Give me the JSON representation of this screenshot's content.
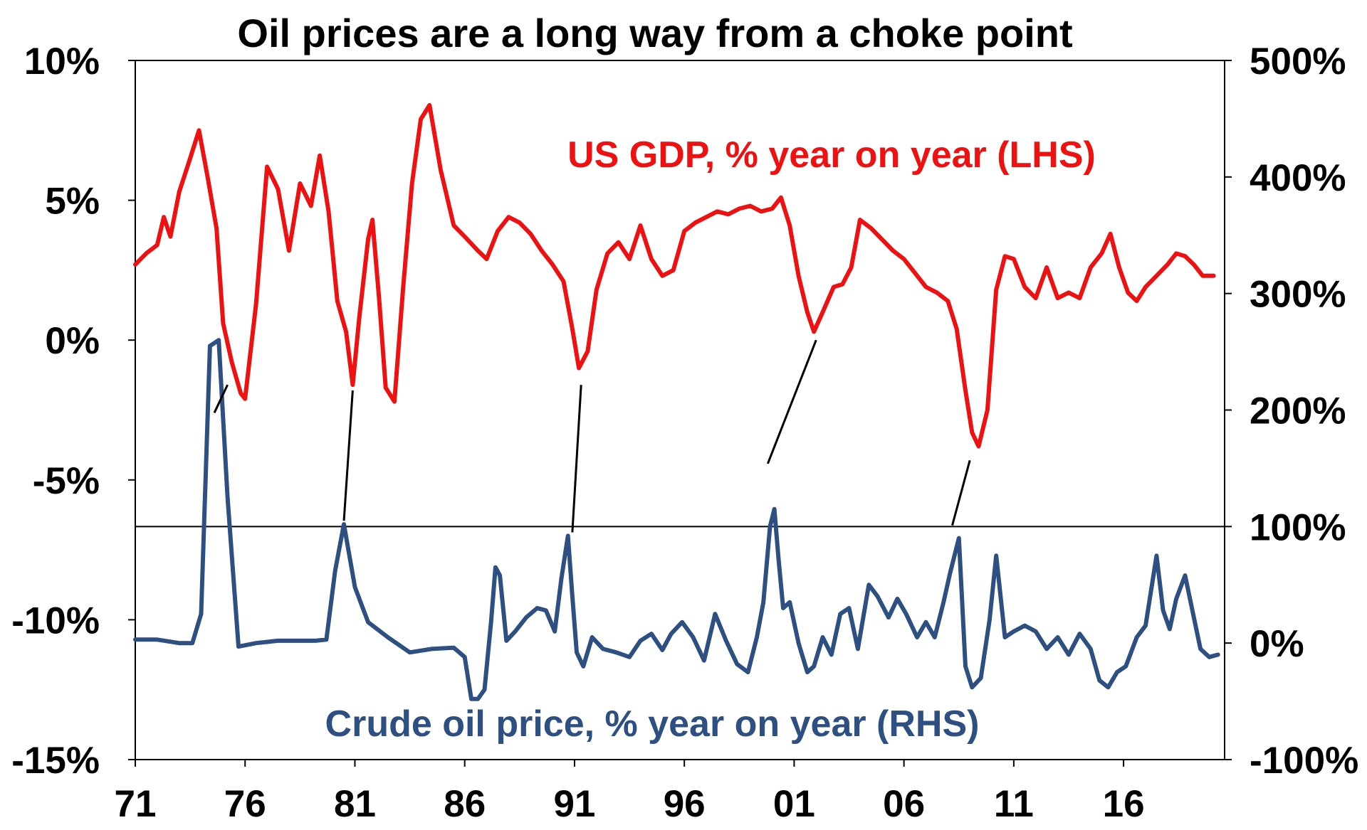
{
  "chart_data": {
    "type": "line",
    "title": "Oil prices are a long way from a choke point",
    "x_ticks": [
      "71",
      "76",
      "81",
      "86",
      "91",
      "96",
      "01",
      "06",
      "11",
      "16"
    ],
    "x_tick_years": [
      1971,
      1976,
      1981,
      1986,
      1991,
      1996,
      2001,
      2006,
      2011,
      2016
    ],
    "xlim": [
      1971,
      2020.6
    ],
    "left_axis": {
      "ylim": [
        -15,
        10
      ],
      "ticks": [
        10,
        5,
        0,
        -5,
        -10,
        -15
      ],
      "tick_labels": [
        "10%",
        "5%",
        "0%",
        "-5%",
        "-10%",
        "-15%"
      ]
    },
    "right_axis": {
      "ylim": [
        -100,
        500
      ],
      "ticks": [
        500,
        400,
        300,
        200,
        100,
        0,
        -100
      ],
      "tick_labels": [
        "500%",
        "400%",
        "300%",
        "200%",
        "100%",
        "0%",
        "-100%"
      ],
      "reference_line": 100
    },
    "colors": {
      "gdp": "#ee1111",
      "oil": "#2e4f82",
      "axis": "#000000"
    },
    "series": [
      {
        "name": "US GDP, % year on year (LHS)",
        "axis": "left",
        "x": [
          1971.0,
          1971.5,
          1972.0,
          1972.3,
          1972.6,
          1973.0,
          1973.5,
          1973.9,
          1974.3,
          1974.7,
          1975.0,
          1975.4,
          1975.8,
          1976.0,
          1976.5,
          1977.0,
          1977.5,
          1978.0,
          1978.5,
          1979.0,
          1979.4,
          1979.8,
          1980.2,
          1980.6,
          1980.9,
          1981.2,
          1981.6,
          1981.8,
          1982.1,
          1982.4,
          1982.8,
          1983.2,
          1983.6,
          1984.0,
          1984.4,
          1984.9,
          1985.5,
          1986.0,
          1986.6,
          1987.0,
          1987.5,
          1988.0,
          1988.5,
          1989.0,
          1989.5,
          1990.0,
          1990.5,
          1990.9,
          1991.2,
          1991.6,
          1992.0,
          1992.5,
          1993.0,
          1993.5,
          1994.0,
          1994.5,
          1995.0,
          1995.5,
          1996.0,
          1996.5,
          1997.0,
          1997.5,
          1998.0,
          1998.5,
          1999.0,
          1999.5,
          2000.0,
          2000.4,
          2000.8,
          2001.2,
          2001.6,
          2001.9,
          2002.3,
          2002.8,
          2003.2,
          2003.6,
          2004.0,
          2004.5,
          2005.0,
          2005.5,
          2006.0,
          2006.5,
          2007.0,
          2007.5,
          2008.0,
          2008.4,
          2008.8,
          2009.1,
          2009.4,
          2009.8,
          2010.2,
          2010.6,
          2011.0,
          2011.5,
          2012.0,
          2012.5,
          2013.0,
          2013.5,
          2014.0,
          2014.5,
          2015.0,
          2015.4,
          2015.8,
          2016.2,
          2016.6,
          2017.0,
          2017.5,
          2018.0,
          2018.4,
          2018.8,
          2019.2,
          2019.6,
          2020.1
        ],
        "values": [
          2.7,
          3.1,
          3.4,
          4.4,
          3.7,
          5.3,
          6.5,
          7.5,
          5.8,
          4.0,
          0.6,
          -0.8,
          -1.9,
          -2.1,
          1.3,
          6.2,
          5.4,
          3.2,
          5.6,
          4.8,
          6.6,
          4.6,
          1.4,
          0.3,
          -1.6,
          0.8,
          3.6,
          4.3,
          1.5,
          -1.7,
          -2.2,
          1.9,
          5.6,
          7.9,
          8.4,
          6.1,
          4.1,
          3.7,
          3.2,
          2.9,
          3.9,
          4.4,
          4.2,
          3.8,
          3.2,
          2.7,
          2.1,
          0.4,
          -1.0,
          -0.4,
          1.8,
          3.1,
          3.5,
          2.9,
          4.1,
          2.9,
          2.3,
          2.5,
          3.9,
          4.2,
          4.4,
          4.6,
          4.5,
          4.7,
          4.8,
          4.6,
          4.7,
          5.1,
          4.1,
          2.3,
          1.0,
          0.3,
          1.0,
          1.9,
          2.0,
          2.6,
          4.3,
          4.0,
          3.6,
          3.2,
          2.9,
          2.4,
          1.9,
          1.7,
          1.4,
          0.4,
          -1.8,
          -3.3,
          -3.8,
          -2.5,
          1.8,
          3.0,
          2.9,
          1.9,
          1.5,
          2.6,
          1.5,
          1.7,
          1.5,
          2.6,
          3.1,
          3.8,
          2.6,
          1.7,
          1.4,
          1.9,
          2.3,
          2.7,
          3.1,
          3.0,
          2.7,
          2.3,
          2.3
        ]
      },
      {
        "name": "Crude oil price, % year on year (RHS)",
        "axis": "right",
        "x": [
          1971.0,
          1972.0,
          1973.0,
          1973.6,
          1974.0,
          1974.4,
          1974.8,
          1975.2,
          1975.7,
          1976.5,
          1977.5,
          1978.5,
          1979.2,
          1979.7,
          1980.1,
          1980.5,
          1981.0,
          1981.6,
          1982.5,
          1983.5,
          1984.5,
          1985.5,
          1986.0,
          1986.3,
          1986.6,
          1986.9,
          1987.2,
          1987.4,
          1987.6,
          1987.9,
          1988.3,
          1988.8,
          1989.3,
          1989.7,
          1990.1,
          1990.4,
          1990.7,
          1990.9,
          1991.1,
          1991.4,
          1991.8,
          1992.3,
          1992.9,
          1993.5,
          1994.0,
          1994.5,
          1995.0,
          1995.4,
          1995.9,
          1996.4,
          1996.9,
          1997.4,
          1997.9,
          1998.4,
          1998.9,
          1999.3,
          1999.6,
          1999.9,
          2000.1,
          2000.3,
          2000.5,
          2000.8,
          2001.2,
          2001.6,
          2001.9,
          2002.3,
          2002.7,
          2003.1,
          2003.5,
          2003.9,
          2004.4,
          2004.8,
          2005.3,
          2005.7,
          2006.1,
          2006.6,
          2007.0,
          2007.4,
          2007.8,
          2008.1,
          2008.5,
          2008.8,
          2009.1,
          2009.5,
          2009.9,
          2010.2,
          2010.6,
          2011.0,
          2011.5,
          2012.0,
          2012.5,
          2013.0,
          2013.5,
          2014.0,
          2014.5,
          2014.9,
          2015.3,
          2015.7,
          2016.1,
          2016.6,
          2017.0,
          2017.5,
          2017.8,
          2018.1,
          2018.4,
          2018.8,
          2019.2,
          2019.5,
          2019.9,
          2020.3
        ],
        "values": [
          3,
          3,
          0,
          0,
          25,
          255,
          260,
          125,
          -3,
          0,
          2,
          2,
          2,
          3,
          62,
          102,
          48,
          18,
          5,
          -8,
          -5,
          -4,
          -12,
          -48,
          -48,
          -40,
          18,
          65,
          58,
          2,
          10,
          22,
          30,
          28,
          10,
          55,
          92,
          40,
          -8,
          -20,
          5,
          -5,
          -8,
          -12,
          2,
          8,
          -6,
          8,
          18,
          5,
          -15,
          25,
          2,
          -18,
          -25,
          5,
          35,
          100,
          115,
          70,
          30,
          35,
          0,
          -25,
          -20,
          5,
          -10,
          25,
          30,
          -5,
          50,
          40,
          22,
          38,
          25,
          5,
          18,
          5,
          35,
          60,
          90,
          -20,
          -38,
          -30,
          20,
          75,
          5,
          10,
          15,
          10,
          -5,
          5,
          -10,
          8,
          -5,
          -32,
          -38,
          -25,
          -20,
          5,
          15,
          75,
          28,
          12,
          38,
          58,
          22,
          -5,
          -12,
          -10
        ]
      }
    ],
    "annotations": [
      {
        "x1": 1975.2,
        "y1_left": -1.6,
        "x2": 1974.6,
        "y2_left": -2.6
      },
      {
        "x1": 1980.9,
        "y1_left": -1.8,
        "x2": 1980.5,
        "y2_right": 105
      },
      {
        "x1": 1991.3,
        "y1_left": -1.6,
        "x2": 1990.9,
        "y2_right": 95
      },
      {
        "x1": 2002.0,
        "y1_left": 0.0,
        "x2": 1999.8,
        "y2_right": 154
      },
      {
        "x1": 2009.0,
        "y1_left": -4.3,
        "x2": 2008.2,
        "y2_right": 101
      }
    ]
  }
}
